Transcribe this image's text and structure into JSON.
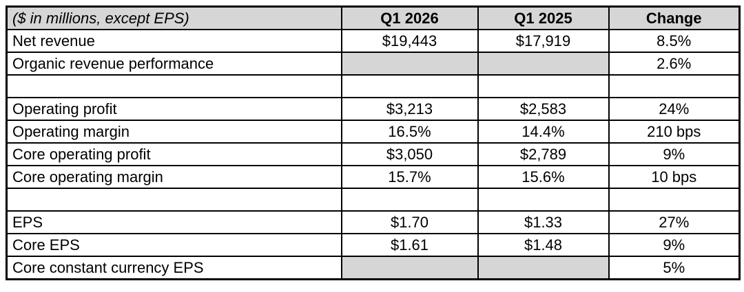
{
  "table": {
    "columns": [
      {
        "key": "label",
        "header": "($ in millions, except EPS)"
      },
      {
        "key": "q1_2026",
        "header": "Q1 2026"
      },
      {
        "key": "q1_2025",
        "header": "Q1 2025"
      },
      {
        "key": "change",
        "header": "Change"
      }
    ],
    "rows": [
      {
        "label": "Net revenue",
        "q1_2026": "$19,443",
        "q1_2025": "$17,919",
        "change": "8.5%",
        "shaded_cols": [],
        "spacer": false
      },
      {
        "label": "Organic revenue performance",
        "q1_2026": "",
        "q1_2025": "",
        "change": "2.6%",
        "shaded_cols": [
          "q1_2026",
          "q1_2025"
        ],
        "spacer": false
      },
      {
        "label": "",
        "q1_2026": "",
        "q1_2025": "",
        "change": "",
        "shaded_cols": [],
        "spacer": true
      },
      {
        "label": "Operating profit",
        "q1_2026": "$3,213",
        "q1_2025": "$2,583",
        "change": "24%",
        "shaded_cols": [],
        "spacer": false
      },
      {
        "label": "Operating margin",
        "q1_2026": "16.5%",
        "q1_2025": "14.4%",
        "change": "210 bps",
        "shaded_cols": [],
        "spacer": false
      },
      {
        "label": "Core operating profit",
        "q1_2026": "$3,050",
        "q1_2025": "$2,789",
        "change": "9%",
        "shaded_cols": [],
        "spacer": false
      },
      {
        "label": "Core operating margin",
        "q1_2026": "15.7%",
        "q1_2025": "15.6%",
        "change": "10 bps",
        "shaded_cols": [],
        "spacer": false
      },
      {
        "label": "",
        "q1_2026": "",
        "q1_2025": "",
        "change": "",
        "shaded_cols": [],
        "spacer": true
      },
      {
        "label": "EPS",
        "q1_2026": "$1.70",
        "q1_2025": "$1.33",
        "change": "27%",
        "shaded_cols": [],
        "spacer": false
      },
      {
        "label": "Core EPS",
        "q1_2026": "$1.61",
        "q1_2025": "$1.48",
        "change": "9%",
        "shaded_cols": [],
        "spacer": false
      },
      {
        "label": "Core constant currency EPS",
        "q1_2026": "",
        "q1_2025": "",
        "change": "5%",
        "shaded_cols": [
          "q1_2026",
          "q1_2025"
        ],
        "spacer": false
      }
    ],
    "colors": {
      "header_bg": "#d6d6d6",
      "shaded_cell_bg": "#d6d6d6",
      "row_bg": "#ffffff",
      "border": "#000000"
    }
  }
}
